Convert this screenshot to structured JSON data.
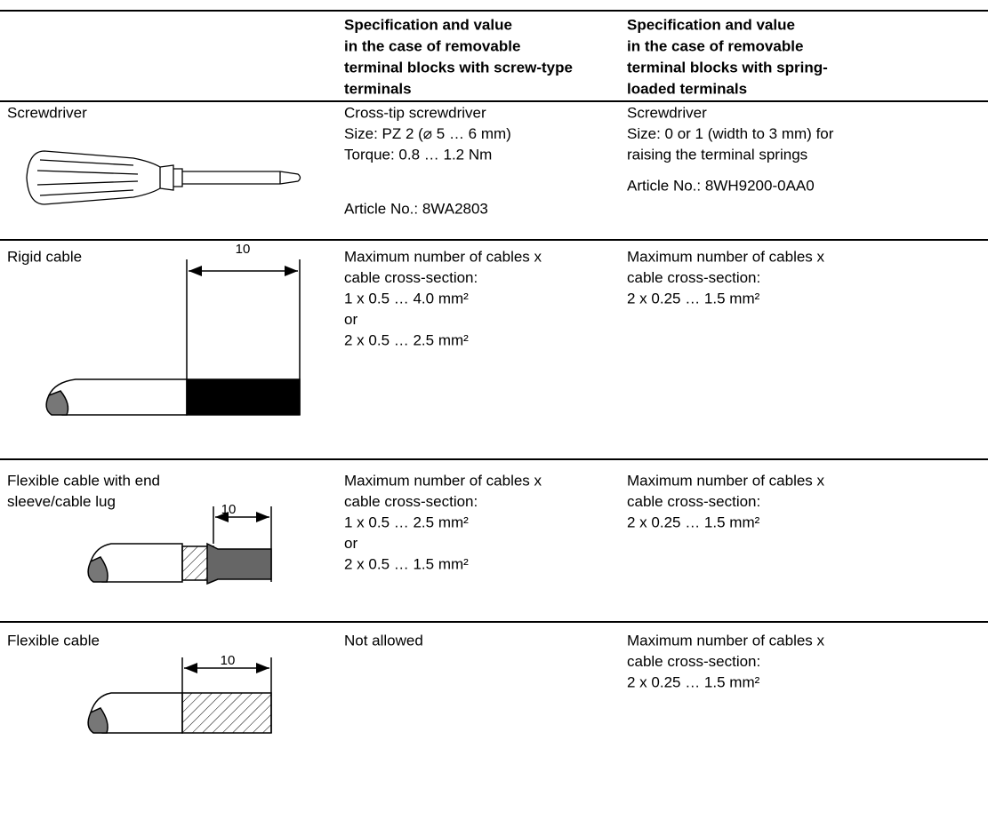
{
  "header": {
    "screw": [
      "Specification and value",
      "in the case of removable",
      "terminal blocks with screw-type",
      "terminals"
    ],
    "spring": [
      "Specification and value",
      "in the case of removable",
      "terminal blocks with spring-",
      "loaded terminals"
    ]
  },
  "rows": [
    {
      "label": [
        "Screwdriver"
      ],
      "screw": {
        "lines": [
          "Cross-tip screwdriver",
          "Size: PZ 2 (⌀ 5 … 6 mm)",
          "Torque: 0.8 … 1.2 Nm"
        ],
        "article": "Article No.: 8WA2803"
      },
      "spring": {
        "lines": [
          "Screwdriver",
          "Size: 0 or 1 (width to 3 mm) for",
          "raising the terminal springs"
        ],
        "article": "Article No.: 8WH9200-0AA0"
      }
    },
    {
      "label": [
        "Rigid cable"
      ],
      "dimension": "10",
      "screw": {
        "lines": [
          "Maximum number of cables x",
          "cable cross-section:",
          "1 x 0.5 … 4.0 mm²",
          "or",
          "2 x 0.5 … 2.5 mm²"
        ]
      },
      "spring": {
        "lines": [
          "Maximum number of cables x",
          "cable cross-section:",
          "2 x 0.25 … 1.5 mm²"
        ]
      }
    },
    {
      "label": [
        "Flexible cable with end",
        "sleeve/cable lug"
      ],
      "dimension": "10",
      "screw": {
        "lines": [
          "Maximum number of cables x",
          "cable cross-section:",
          "1 x 0.5 … 2.5 mm²",
          "or",
          "2 x 0.5 … 1.5 mm²"
        ]
      },
      "spring": {
        "lines": [
          "Maximum number of cables x",
          "cable cross-section:",
          "2 x 0.25 … 1.5 mm²"
        ]
      }
    },
    {
      "label": [
        "Flexible cable"
      ],
      "dimension": "10",
      "screw": {
        "lines": [
          "Not allowed"
        ]
      },
      "spring": {
        "lines": [
          "Maximum number of cables x",
          "cable cross-section:",
          "2 x 0.25 … 1.5 mm²"
        ]
      }
    }
  ]
}
